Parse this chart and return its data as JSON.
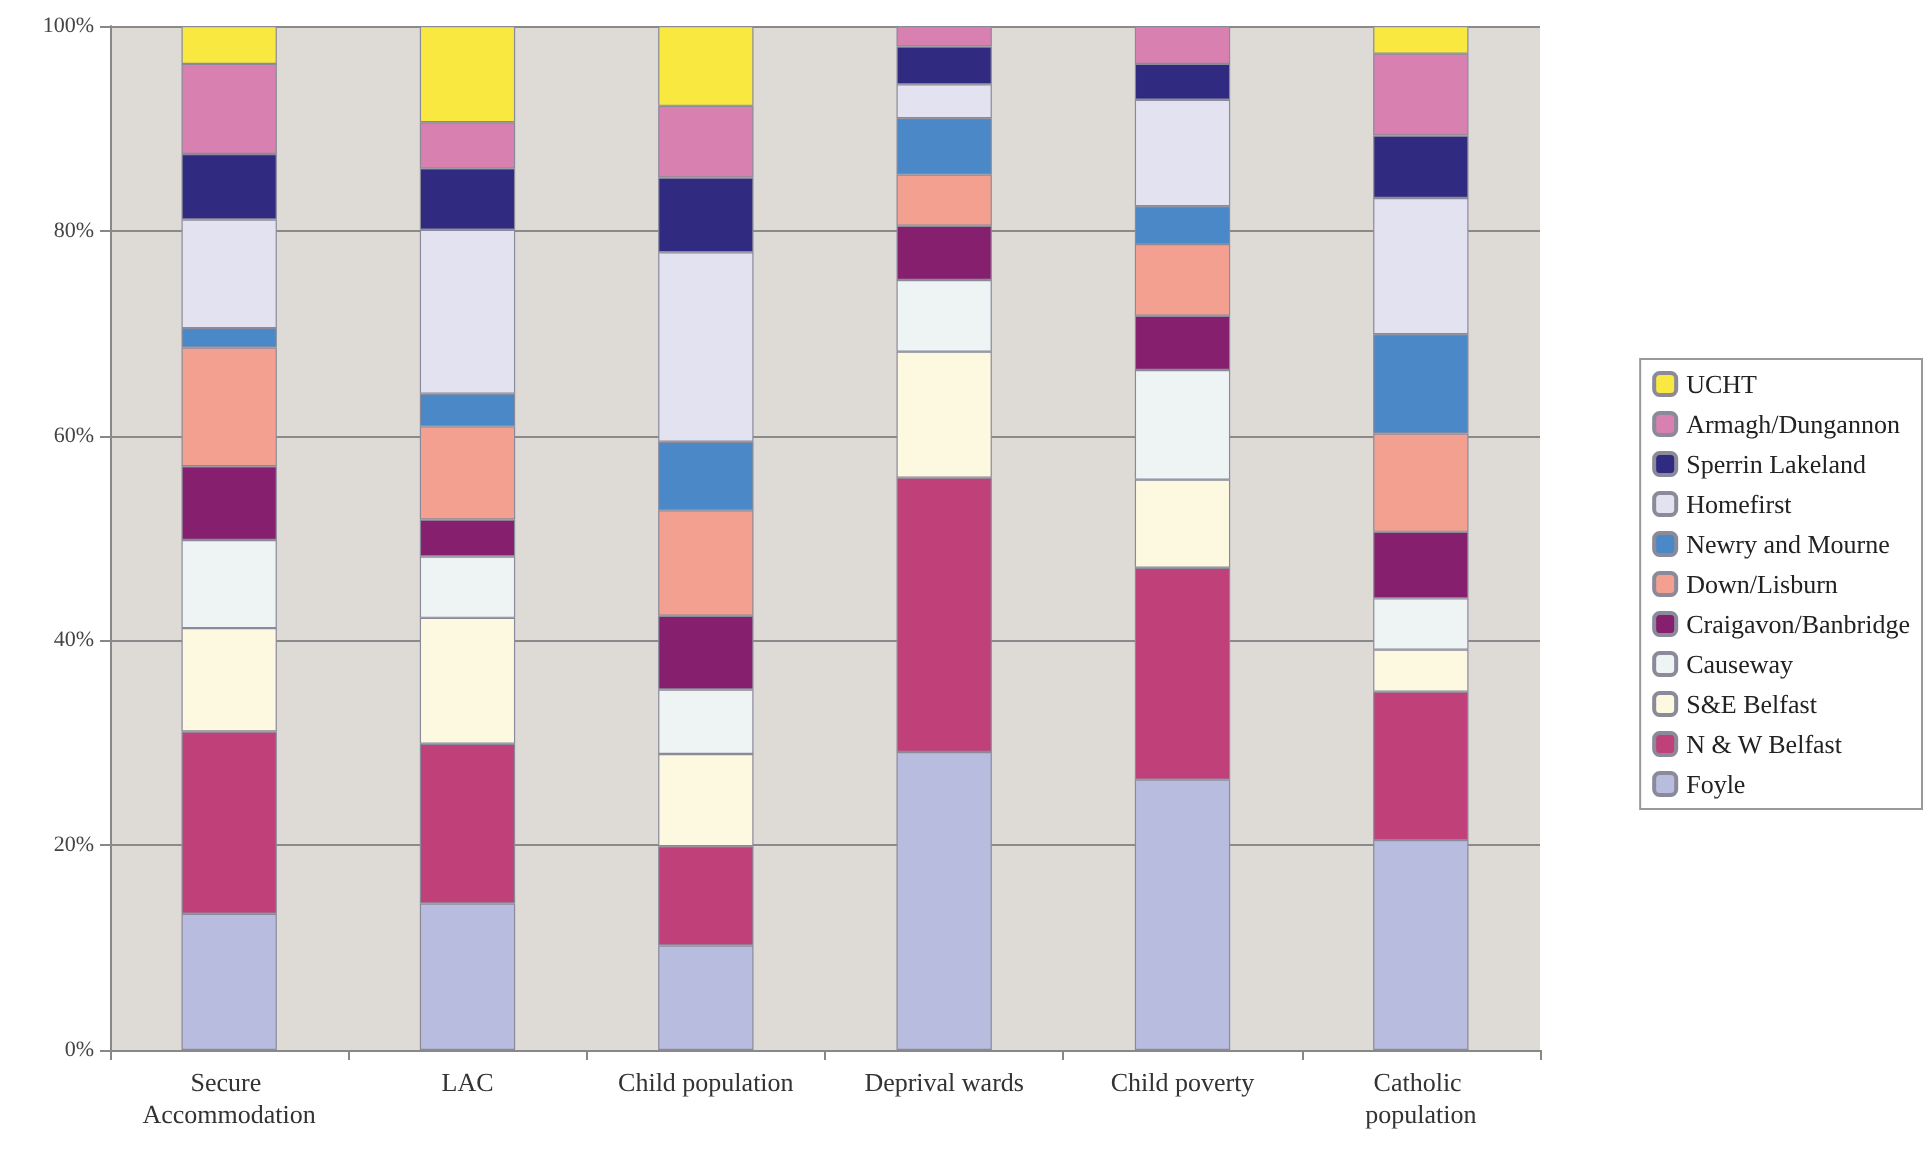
{
  "chart_data": {
    "type": "bar",
    "stacked": true,
    "categories": [
      "Secure Accommodation",
      "LAC",
      "Child population",
      "Deprival wards",
      "Child poverty",
      "Catholic population"
    ],
    "series": [
      {
        "name": "Foyle",
        "color": "#b8bde0",
        "values": [
          13.3,
          14.3,
          10.2,
          29.1,
          26.4,
          20.5
        ]
      },
      {
        "name": "N & W Belfast",
        "color": "#c0407a",
        "values": [
          17.8,
          15.6,
          9.7,
          26.8,
          20.7,
          14.5
        ]
      },
      {
        "name": "S&E Belfast",
        "color": "#fdf8e0",
        "values": [
          10.1,
          12.3,
          9.0,
          12.3,
          8.6,
          4.1
        ]
      },
      {
        "name": "Causeway",
        "color": "#eef4f4",
        "values": [
          8.6,
          6.0,
          6.3,
          7.0,
          10.7,
          5.0
        ]
      },
      {
        "name": "Craigavon/Banbridge",
        "color": "#86206e",
        "values": [
          7.2,
          3.6,
          7.2,
          5.3,
          5.3,
          6.5
        ]
      },
      {
        "name": "Down/Lisburn",
        "color": "#f4a090",
        "values": [
          11.6,
          9.1,
          10.3,
          5.0,
          7.0,
          9.6
        ]
      },
      {
        "name": "Newry and Mourne",
        "color": "#4a88c8",
        "values": [
          1.9,
          3.2,
          6.7,
          5.5,
          3.7,
          9.7
        ]
      },
      {
        "name": "Homefirst",
        "color": "#e2e2f0",
        "values": [
          10.6,
          16.0,
          18.5,
          3.3,
          10.4,
          13.3
        ]
      },
      {
        "name": "Sperrin Lakeland",
        "color": "#302a80",
        "values": [
          6.4,
          6.0,
          7.3,
          3.7,
          3.5,
          6.1
        ]
      },
      {
        "name": "Armagh/Dungannon",
        "color": "#d880b0",
        "values": [
          8.8,
          4.5,
          7.0,
          2.0,
          3.7,
          8.0
        ]
      },
      {
        "name": "UCHT",
        "color": "#f8e840",
        "values": [
          3.7,
          9.4,
          7.8,
          null,
          null,
          2.7
        ]
      }
    ],
    "ylim": [
      0,
      100
    ],
    "yticks": [
      {
        "value": 0,
        "label": "0%"
      },
      {
        "value": 20,
        "label": "20%"
      },
      {
        "value": 40,
        "label": "40%"
      },
      {
        "value": 60,
        "label": "60%"
      },
      {
        "value": 80,
        "label": "80%"
      },
      {
        "value": 100,
        "label": "100%"
      }
    ],
    "grid": "y",
    "legend": "right"
  }
}
